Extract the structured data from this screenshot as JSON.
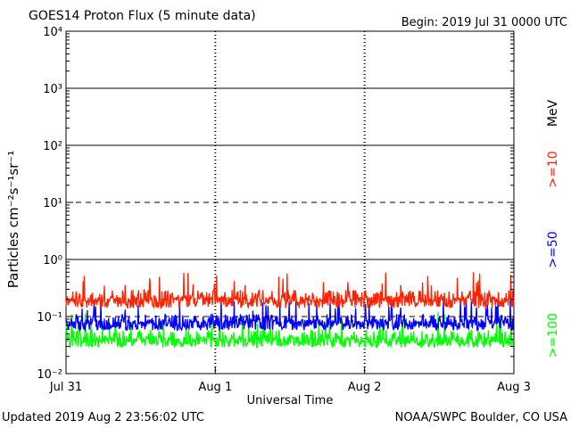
{
  "chart_data": {
    "type": "line",
    "title": "GOES14 Proton Flux (5 minute data)",
    "begin": "Begin: 2019 Jul 31 0000 UTC",
    "xlabel": "Universal Time",
    "ylabel": "Particles cm⁻²s⁻¹sr⁻¹",
    "yscale": "log",
    "ylim": [
      0.01,
      10000
    ],
    "ytick_labels": [
      "10⁻²",
      "10⁻¹",
      "10⁰",
      "10¹",
      "10²",
      "10³",
      "10⁴"
    ],
    "xlim": [
      "2019-07-31",
      "2019-08-03"
    ],
    "x_tick_labels": [
      "Jul 31",
      "Aug 1",
      "Aug 2",
      "Aug 3"
    ],
    "threshold_lines": [
      {
        "value": 10,
        "style": "dashed"
      },
      {
        "value": 0.1,
        "style": "dashed"
      }
    ],
    "energy_unit": "MeV",
    "series": [
      {
        "name": ">=10",
        "color": "#ff2200",
        "baseline": 0.2,
        "low": 0.12,
        "high": 0.6
      },
      {
        "name": ">=50",
        "color": "#0000ff",
        "baseline": 0.08,
        "low": 0.05,
        "high": 0.2
      },
      {
        "name": ">=100",
        "color": "#00ff00",
        "baseline": 0.04,
        "low": 0.025,
        "high": 0.12
      }
    ]
  },
  "footer": {
    "updated": "Updated 2019 Aug  2 23:56:02 UTC",
    "credit": "NOAA/SWPC Boulder, CO USA"
  }
}
